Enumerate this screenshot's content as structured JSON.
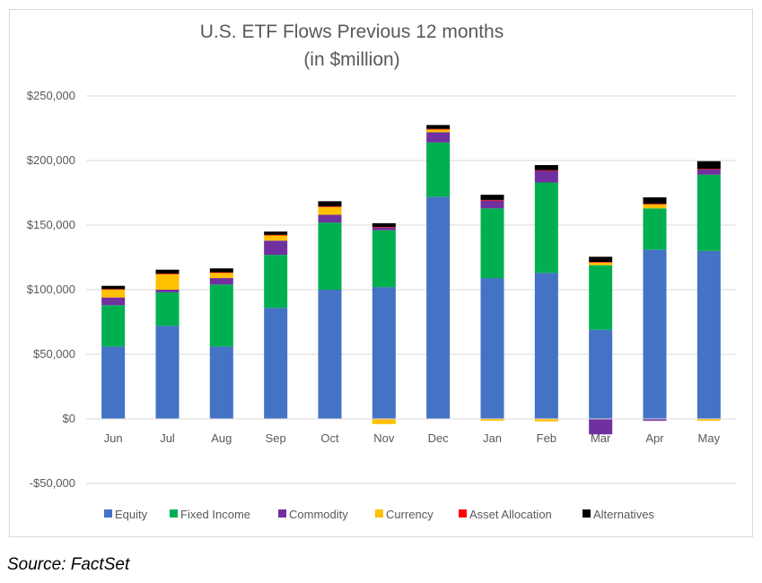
{
  "chart_data": {
    "type": "bar",
    "stacked": true,
    "title": "U.S. ETF Flows Previous 12 months",
    "subtitle": "(in $million)",
    "xlabel": "",
    "ylabel": "",
    "ylim": [
      -50000,
      250000
    ],
    "yticks": [
      250000,
      200000,
      150000,
      100000,
      50000,
      0,
      -50000
    ],
    "ytick_labels": [
      "$250,000",
      "$200,000",
      "$150,000",
      "$100,000",
      "$50,000",
      "$0",
      "-$50,000"
    ],
    "grid": true,
    "legend_position": "bottom",
    "categories": [
      "Jun",
      "Jul",
      "Aug",
      "Sep",
      "Oct",
      "Nov",
      "Dec",
      "Jan",
      "Feb",
      "Mar",
      "Apr",
      "May"
    ],
    "series": [
      {
        "name": "Equity",
        "color": "#4472c4",
        "values": [
          56000,
          72000,
          56000,
          86000,
          100000,
          102000,
          172000,
          109000,
          113000,
          69000,
          131000,
          130000
        ]
      },
      {
        "name": "Fixed Income",
        "color": "#00b050",
        "values": [
          32000,
          26000,
          48000,
          41000,
          52000,
          44000,
          42000,
          54000,
          70000,
          50000,
          32000,
          59000
        ]
      },
      {
        "name": "Commodity",
        "color": "#7030a0",
        "values": [
          6000,
          2000,
          5000,
          11000,
          6000,
          2000,
          8000,
          6000,
          9000,
          -12000,
          -1500,
          4000
        ]
      },
      {
        "name": "Currency",
        "color": "#ffc000",
        "values": [
          6000,
          12000,
          4000,
          4000,
          6000,
          -4000,
          2000,
          -1500,
          -2000,
          2000,
          3000,
          -1500
        ]
      },
      {
        "name": "Asset Allocation",
        "color": "#ff0000",
        "values": [
          500,
          500,
          500,
          500,
          500,
          500,
          500,
          500,
          500,
          500,
          500,
          500
        ]
      },
      {
        "name": "Alternatives",
        "color": "#000000",
        "values": [
          2500,
          3000,
          3000,
          2500,
          4000,
          3000,
          3000,
          4000,
          4000,
          4000,
          5000,
          6000
        ]
      }
    ]
  },
  "source": "Source: FactSet"
}
